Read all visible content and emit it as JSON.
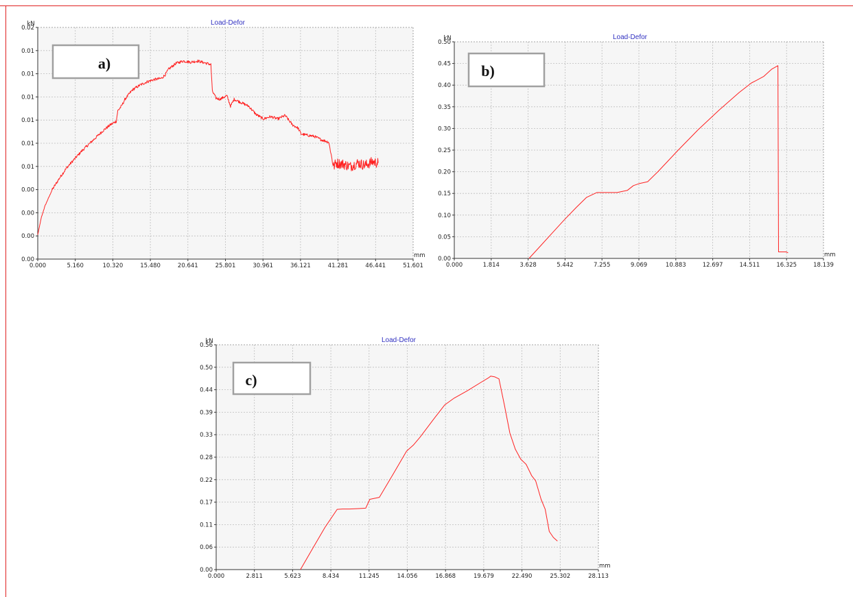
{
  "chart_data": [
    {
      "type": "line",
      "title": "Load-Defor",
      "panel_label": "a)",
      "ylabel": "kN",
      "xlabel": "mm",
      "line_color": "#ff2020",
      "grid": true,
      "legend": "none",
      "ylim": [
        0,
        0.02
      ],
      "xlim": [
        0,
        51.601
      ],
      "yticks": [
        "0.02",
        "0.01",
        "0.01",
        "0.01",
        "0.01",
        "0.01",
        "0.01",
        "0.00",
        "0.00",
        "0.00",
        "0.00"
      ],
      "xticks": [
        "0.000",
        "5.160",
        "10.320",
        "15.480",
        "20.641",
        "25.801",
        "30.961",
        "36.121",
        "41.281",
        "46.441",
        "51.601"
      ],
      "x": [
        0,
        0.5,
        1,
        2,
        3,
        4,
        5,
        6,
        7,
        8,
        9,
        10,
        10.8,
        11,
        11.5,
        12,
        13,
        14,
        15,
        16,
        17,
        17.5,
        18,
        19,
        20,
        21,
        22,
        23.8,
        24,
        24.5,
        25,
        26,
        26.5,
        27,
        28,
        29,
        30,
        31,
        32,
        33,
        34,
        35,
        35.8,
        36.2,
        37,
        38,
        39,
        40,
        40.5,
        40.7,
        41,
        42,
        43,
        44,
        45,
        46,
        46.8
      ],
      "y": [
        0.0021,
        0.0036,
        0.0046,
        0.006,
        0.007,
        0.0079,
        0.0086,
        0.0093,
        0.0099,
        0.0105,
        0.0111,
        0.0116,
        0.0119,
        0.0128,
        0.0132,
        0.0138,
        0.0146,
        0.015,
        0.0153,
        0.0155,
        0.0156,
        0.0159,
        0.0164,
        0.0169,
        0.0171,
        0.017,
        0.0171,
        0.0168,
        0.0145,
        0.0139,
        0.0138,
        0.0141,
        0.0132,
        0.0138,
        0.0135,
        0.0132,
        0.0125,
        0.0121,
        0.0123,
        0.0121,
        0.0124,
        0.0116,
        0.0113,
        0.0108,
        0.0107,
        0.0106,
        0.0103,
        0.0101,
        0.0085,
        0.008,
        0.0083,
        0.0082,
        0.008,
        0.0083,
        0.0081,
        0.0084,
        0.0083
      ]
    },
    {
      "type": "line",
      "title": "Load-Defor",
      "panel_label": "b)",
      "ylabel": "kN",
      "xlabel": "mm",
      "line_color": "#ff2020",
      "grid": true,
      "legend": "none",
      "ylim": [
        0,
        0.5
      ],
      "xlim": [
        0,
        18.139
      ],
      "yticks": [
        "0.50",
        "0.45",
        "0.40",
        "0.35",
        "0.30",
        "0.25",
        "0.20",
        "0.15",
        "0.10",
        "0.05",
        "0.00"
      ],
      "xticks": [
        "0.000",
        "1.814",
        "3.628",
        "5.442",
        "7.255",
        "9.069",
        "10.883",
        "12.697",
        "14.511",
        "16.325",
        "18.139"
      ],
      "x": [
        3.67,
        4.2,
        4.8,
        5.4,
        6.0,
        6.5,
        7.0,
        7.5,
        8.0,
        8.5,
        8.8,
        9.1,
        9.5,
        10.0,
        11.0,
        12.0,
        13.0,
        14.0,
        14.6,
        14.8,
        15.2,
        15.6,
        15.9,
        15.93,
        16.0,
        16.3,
        16.4
      ],
      "y": [
        0.0,
        0.027,
        0.058,
        0.089,
        0.118,
        0.141,
        0.152,
        0.152,
        0.152,
        0.157,
        0.168,
        0.173,
        0.177,
        0.2,
        0.25,
        0.298,
        0.342,
        0.383,
        0.405,
        0.41,
        0.42,
        0.437,
        0.445,
        0.015,
        0.015,
        0.015,
        0.013
      ]
    },
    {
      "type": "line",
      "title": "Load-Defor",
      "panel_label": "c)",
      "ylabel": "kN",
      "xlabel": "mm",
      "line_color": "#ff2020",
      "grid": true,
      "legend": "none",
      "ylim": [
        0,
        0.56
      ],
      "xlim": [
        0,
        28.113
      ],
      "yticks": [
        "0.56",
        "0.50",
        "0.44",
        "0.39",
        "0.33",
        "0.28",
        "0.22",
        "0.17",
        "0.11",
        "0.06",
        "0.00"
      ],
      "xticks": [
        "0.000",
        "2.811",
        "5.623",
        "8.434",
        "11.245",
        "14.056",
        "16.868",
        "19.679",
        "22.490",
        "25.302",
        "28.113"
      ],
      "x": [
        6.2,
        7.0,
        8.0,
        8.9,
        9.3,
        9.8,
        10.5,
        11.0,
        11.3,
        11.6,
        12.0,
        13.0,
        14.0,
        14.5,
        15.0,
        16.0,
        16.8,
        17.5,
        18.5,
        19.5,
        20.0,
        20.2,
        20.5,
        20.8,
        21.2,
        21.6,
        22.0,
        22.4,
        22.8,
        23.2,
        23.5,
        23.9,
        24.2,
        24.5,
        24.8,
        25.1
      ],
      "y": [
        0.0,
        0.047,
        0.105,
        0.15,
        0.151,
        0.151,
        0.152,
        0.153,
        0.175,
        0.177,
        0.18,
        0.237,
        0.295,
        0.31,
        0.33,
        0.375,
        0.41,
        0.427,
        0.446,
        0.467,
        0.477,
        0.482,
        0.48,
        0.475,
        0.41,
        0.34,
        0.3,
        0.275,
        0.262,
        0.234,
        0.221,
        0.175,
        0.15,
        0.095,
        0.08,
        0.071
      ]
    }
  ]
}
